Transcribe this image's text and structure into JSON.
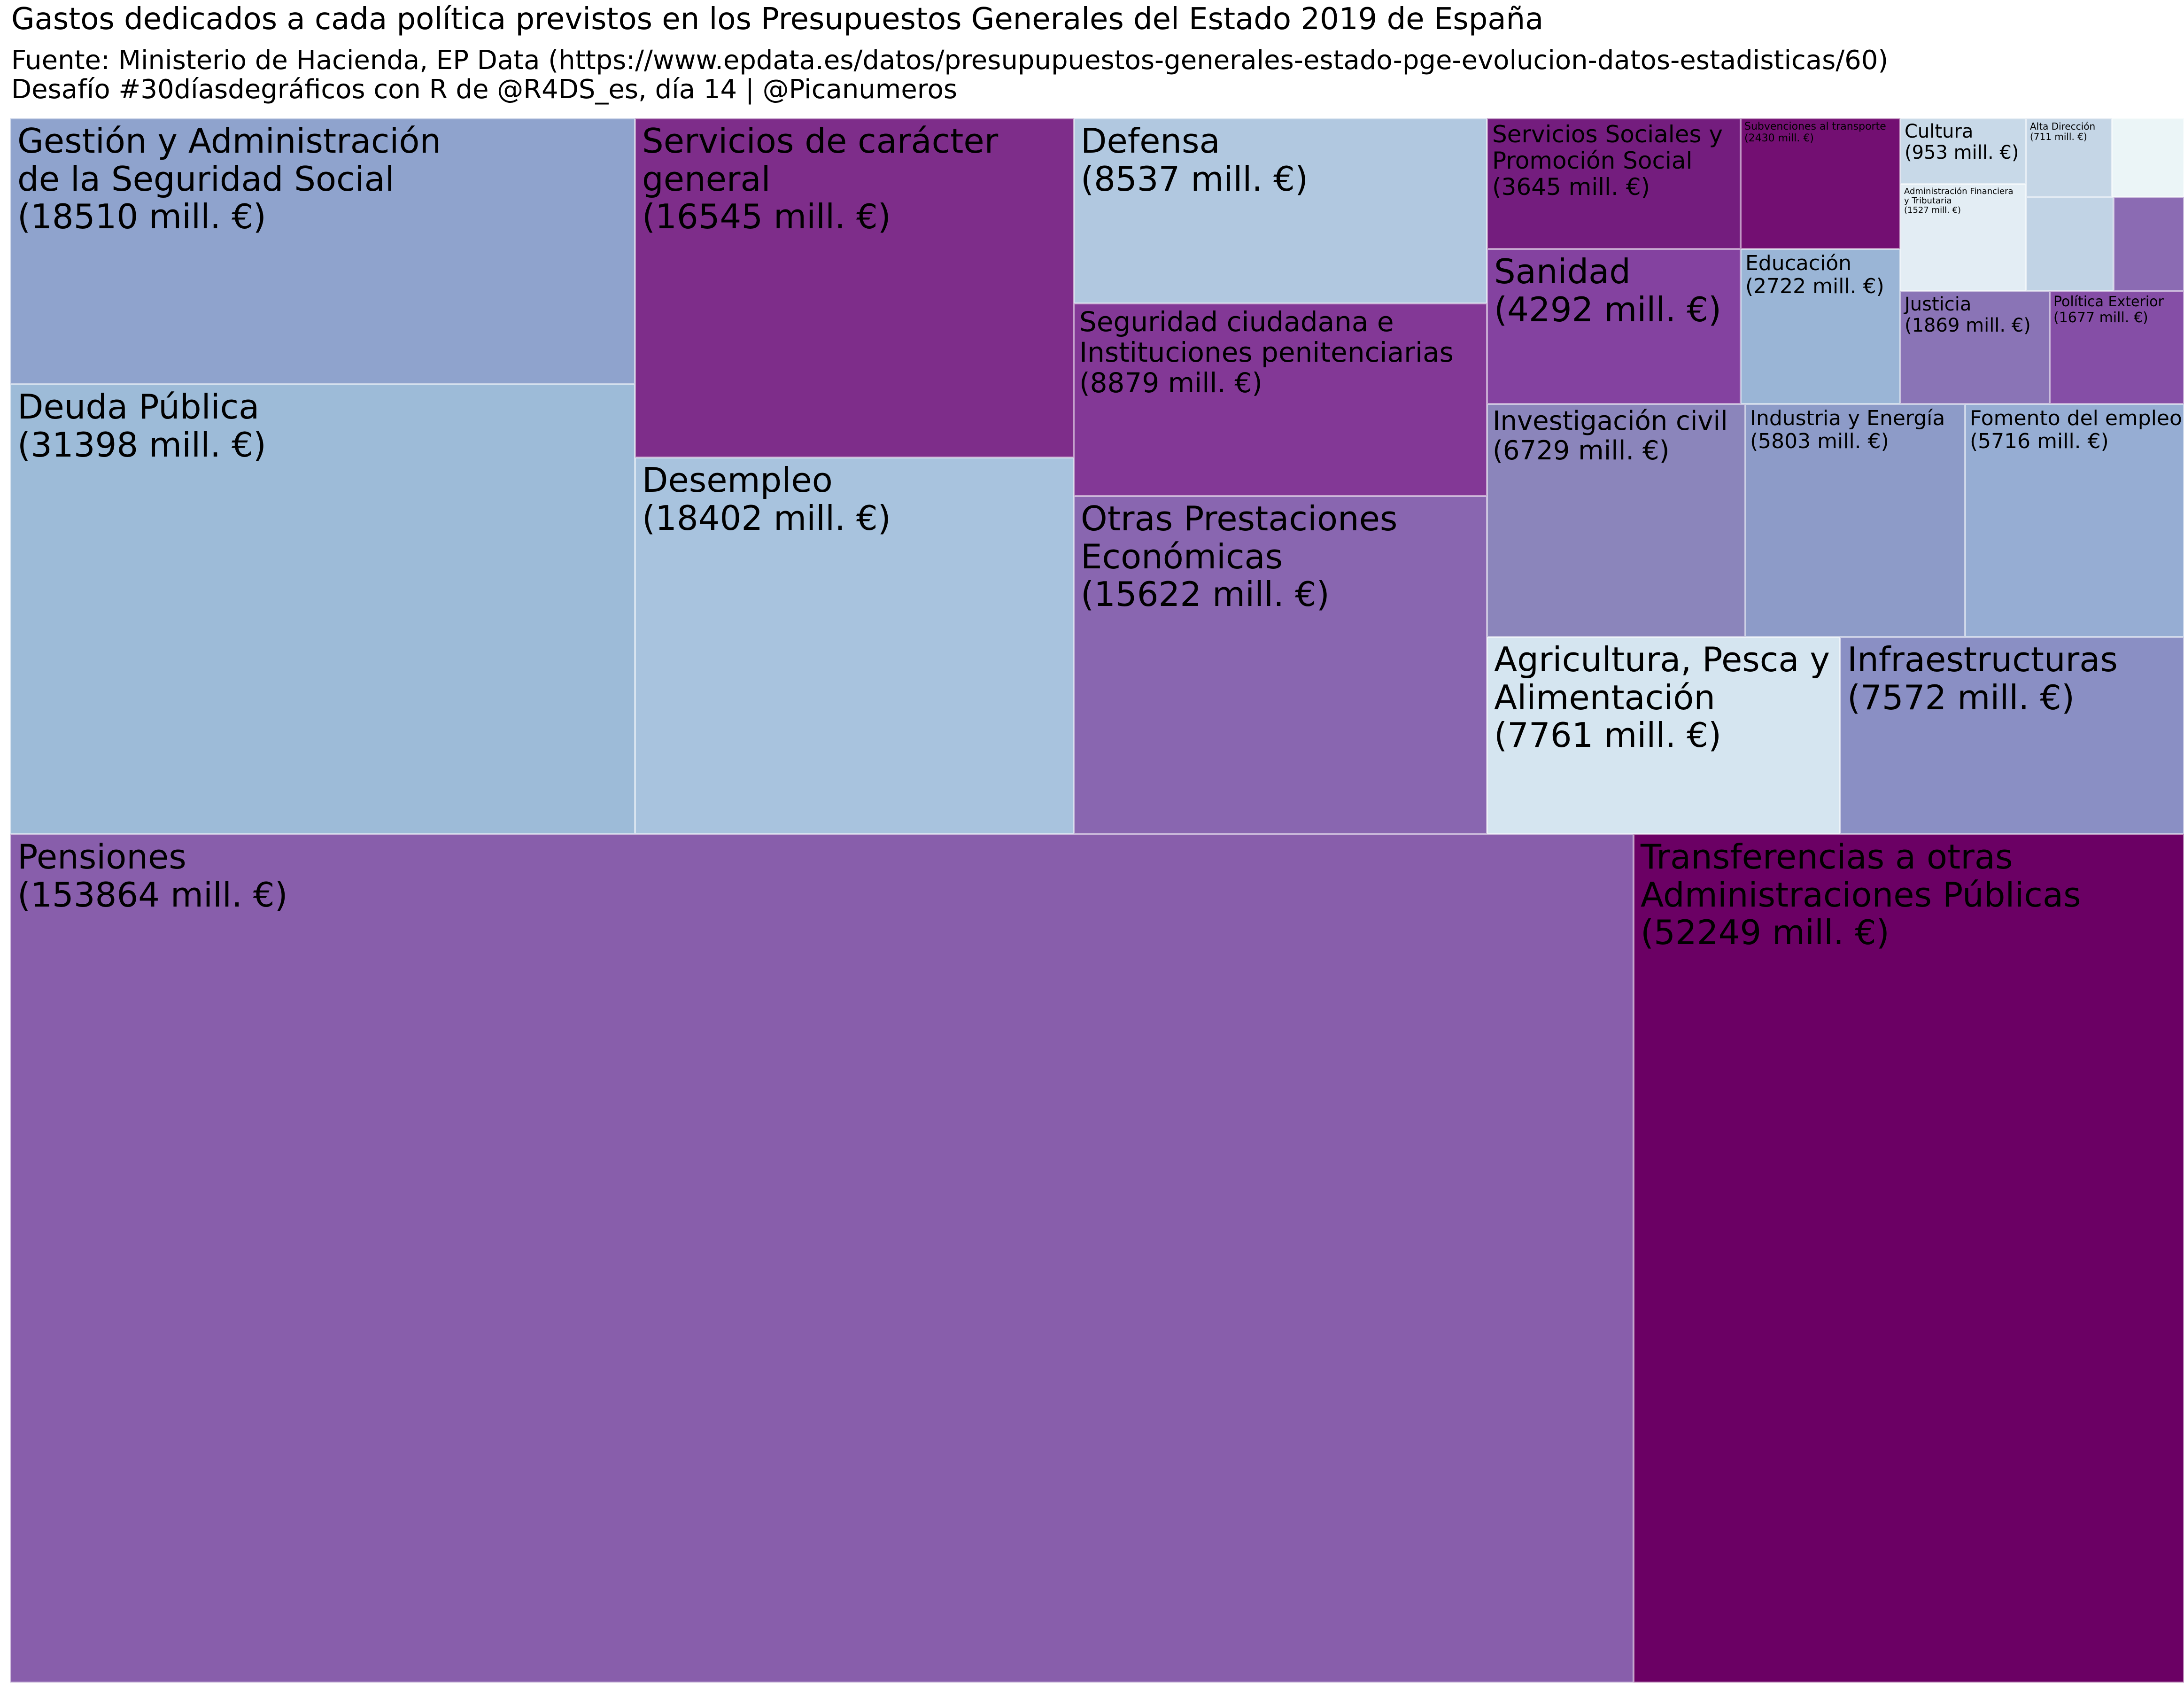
{
  "title": "Gastos dedicados a cada política previstos en los Presupuestos Generales del Estado 2019 de España",
  "subtitle_source": "Fuente: Ministerio de Hacienda, EP Data (https://www.epdata.es/datos/presupupuestos-generales-estado-pge-evolucion-datos-estadisticas/60)",
  "subtitle_credit": "Desafío #30díasdegráficos con R de @R4DS_es, día 14 | @Picanumeros",
  "chart_data": {
    "type": "treemap",
    "unit": "mill. €",
    "legend": "none",
    "items": [
      {
        "label_lines": [
          "Pensiones"
        ],
        "value_text": "(153864 mill. €)",
        "value": 153864,
        "color": "#885eab"
      },
      {
        "label_lines": [
          "Transferencias a otras",
          "Administraciones Públicas"
        ],
        "value_text": "(52249 mill. €)",
        "value": 52249,
        "color": "#6b0064"
      },
      {
        "label_lines": [
          "Deuda Pública"
        ],
        "value_text": "(31398 mill. €)",
        "value": 31398,
        "color": "#9dbbd8"
      },
      {
        "label_lines": [
          "Gestión y Administración",
          "de la Seguridad Social"
        ],
        "value_text": "(18510 mill. €)",
        "value": 18510,
        "color": "#8fa3cd"
      },
      {
        "label_lines": [
          "Desempleo"
        ],
        "value_text": "(18402 mill. €)",
        "value": 18402,
        "color": "#a8c3de"
      },
      {
        "label_lines": [
          "Servicios de carácter",
          "general"
        ],
        "value_text": "(16545 mill. €)",
        "value": 16545,
        "color": "#7e2d8a"
      },
      {
        "label_lines": [
          "Otras Prestaciones",
          "Económicas"
        ],
        "value_text": "(15622 mill. €)",
        "value": 15622,
        "color": "#8966b0"
      },
      {
        "label_lines": [
          "Seguridad ciudadana e",
          "Instituciones penitenciarias"
        ],
        "value_text": "(8879 mill. €)",
        "value": 8879,
        "color": "#833896"
      },
      {
        "label_lines": [
          "Defensa"
        ],
        "value_text": "(8537 mill. €)",
        "value": 8537,
        "color": "#b1c8e0"
      },
      {
        "label_lines": [
          "Agricultura, Pesca y",
          "Alimentación"
        ],
        "value_text": "(7761 mill. €)",
        "value": 7761,
        "color": "#d5e5f0"
      },
      {
        "label_lines": [
          "Infraestructuras"
        ],
        "value_text": "(7572 mill. €)",
        "value": 7572,
        "color": "#8a8fc4"
      },
      {
        "label_lines": [
          "Investigación civil"
        ],
        "value_text": "(6729 mill. €)",
        "value": 6729,
        "color": "#8b85bb"
      },
      {
        "label_lines": [
          "Industria y Energía"
        ],
        "value_text": "(5803 mill. €)",
        "value": 5803,
        "color": "#8d9bc8"
      },
      {
        "label_lines": [
          "Fomento del empleo"
        ],
        "value_text": "(5716 mill. €)",
        "value": 5716,
        "color": "#96add3"
      },
      {
        "label_lines": [
          "Sanidad"
        ],
        "value_text": "(4292 mill. €)",
        "value": 4292,
        "color": "#8442a0"
      },
      {
        "label_lines": [
          "Servicios Sociales y",
          "Promoción Social"
        ],
        "value_text": "(3645 mill. €)",
        "value": 3645,
        "color": "#741d7e"
      },
      {
        "label_lines": [
          "Educación"
        ],
        "value_text": "(2722 mill. €)",
        "value": 2722,
        "color": "#9ab5d6"
      },
      {
        "label_lines": [
          "Subvenciones al transporte"
        ],
        "value_text": "(2430 mill. €)",
        "value": 2430,
        "color": "#730f72"
      },
      {
        "label_lines": [
          "Justicia"
        ],
        "value_text": "(1869 mill. €)",
        "value": 1869,
        "color": "#8a74b6"
      },
      {
        "label_lines": [
          "Política Exterior"
        ],
        "value_text": "(1677 mill. €)",
        "value": 1677,
        "color": "#854ea6"
      },
      {
        "label_lines": [
          "Administración Financiera",
          "y Tributaria"
        ],
        "value_text": "(1527 mill. €)",
        "value": 1527,
        "color": "#e3edf4"
      },
      {
        "label_lines": [
          "Cultura"
        ],
        "value_text": "(953 mill. €)",
        "value": 953,
        "color": "#c8d9e8"
      },
      {
        "label_lines": [
          "Alta Dirección"
        ],
        "value_text": "(711 mill. €)",
        "value": 711,
        "color": "#c5d6e6"
      },
      {
        "label_lines": [],
        "value_text": "",
        "color": "#c1d3e5"
      },
      {
        "label_lines": [],
        "value_text": "",
        "color": "#8b6bb3"
      },
      {
        "label_lines": [],
        "value_text": "",
        "color": "#ebf5f7"
      }
    ]
  }
}
